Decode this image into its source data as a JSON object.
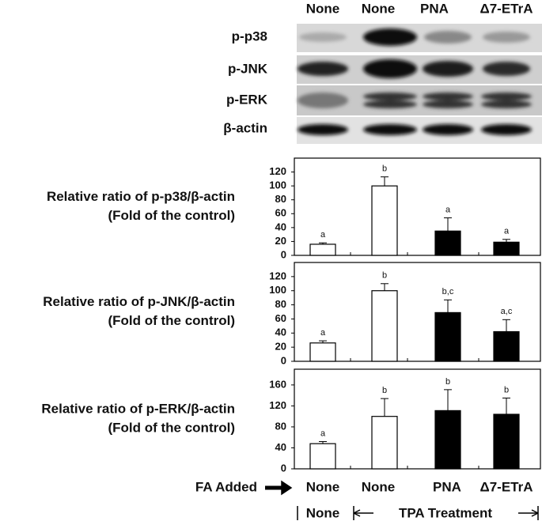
{
  "blot": {
    "lanes": [
      "None",
      "None",
      "PNA",
      "Δ7-ETrA"
    ],
    "rows": [
      "p-p38",
      "p-JNK",
      "p-ERK",
      "β-actin"
    ]
  },
  "chart_data": [
    {
      "type": "bar",
      "ylabel": [
        "Relative ratio of p-p38/β-actin",
        "(Fold of the control)"
      ],
      "values": [
        16,
        100,
        35,
        19
      ],
      "errors": [
        2,
        13,
        19,
        4
      ],
      "annotations": [
        "a",
        "b",
        "a",
        "a"
      ],
      "colors": [
        "#ffffff",
        "#ffffff",
        "#000000",
        "#000000"
      ],
      "ylim": [
        0,
        140
      ],
      "yticks": [
        0,
        20,
        40,
        60,
        80,
        100,
        120
      ]
    },
    {
      "type": "bar",
      "ylabel": [
        "Relative ratio of p-JNK/β-actin",
        "(Fold of the control)"
      ],
      "values": [
        26,
        100,
        69,
        42
      ],
      "errors": [
        3,
        10,
        18,
        17
      ],
      "annotations": [
        "a",
        "b",
        "b,c",
        "a,c"
      ],
      "colors": [
        "#ffffff",
        "#ffffff",
        "#000000",
        "#000000"
      ],
      "ylim": [
        0,
        140
      ],
      "yticks": [
        0,
        20,
        40,
        60,
        80,
        100,
        120
      ]
    },
    {
      "type": "bar",
      "ylabel": [
        "Relative ratio of p-ERK/β-actin",
        "(Fold of the control)"
      ],
      "values": [
        48,
        100,
        111,
        104
      ],
      "errors": [
        4,
        34,
        40,
        31
      ],
      "annotations": [
        "a",
        "b",
        "b",
        "b"
      ],
      "colors": [
        "#ffffff",
        "#ffffff",
        "#000000",
        "#000000"
      ],
      "ylim": [
        0,
        190
      ],
      "yticks": [
        0,
        40,
        80,
        120,
        160
      ],
      "xlabel": "FA Added",
      "categories": [
        "None",
        "None",
        "PNA",
        "Δ7-ETrA"
      ]
    }
  ],
  "footer": {
    "control": "None",
    "treatment": "TPA Treatment"
  }
}
